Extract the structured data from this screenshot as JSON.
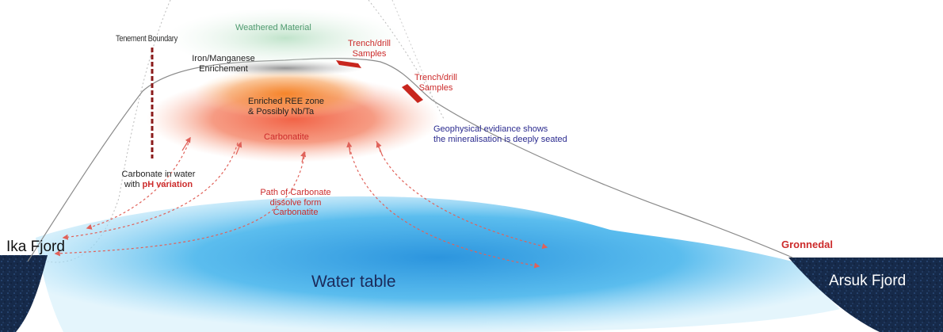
{
  "labels": {
    "tenement_boundary": "Tenement Boundary",
    "weathered_material": "Weathered Material",
    "trench_1": [
      "Trench/drill",
      "Samples"
    ],
    "trench_2": [
      "Trench/drill",
      "Samples"
    ],
    "iron_manganese": [
      "Iron/Manganese",
      "Enrichement"
    ],
    "enriched_ree": [
      "Enriched REE zone",
      "& Possibly Nb/Ta"
    ],
    "carbonatite": "Carbonatite",
    "geophysical": [
      "Geophysical evidiance shows",
      "the mineralisation is deeply seated"
    ],
    "carbonate_water_line1": "Carbonate in water",
    "carbonate_water_line2_prefix": "with ",
    "carbonate_water_line2_emph": "pH variation",
    "path_carbonate": [
      "Path of Carbonate",
      "dissolve form",
      "Carbonatite"
    ],
    "ika_fjord": "Ika Fjord",
    "water_table": "Water table",
    "gronnedal": "Gronnedal",
    "arsuk_fjord": "Arsuk Fjord"
  },
  "colors": {
    "weathered": "#4f9a6f",
    "red_label": "#cc2b2b",
    "blue_label": "#2b2b8f",
    "boundary": "#8b1a1a",
    "fjord": "#162a4a",
    "water": "#36a7e6",
    "arrow": "#e0625a"
  }
}
